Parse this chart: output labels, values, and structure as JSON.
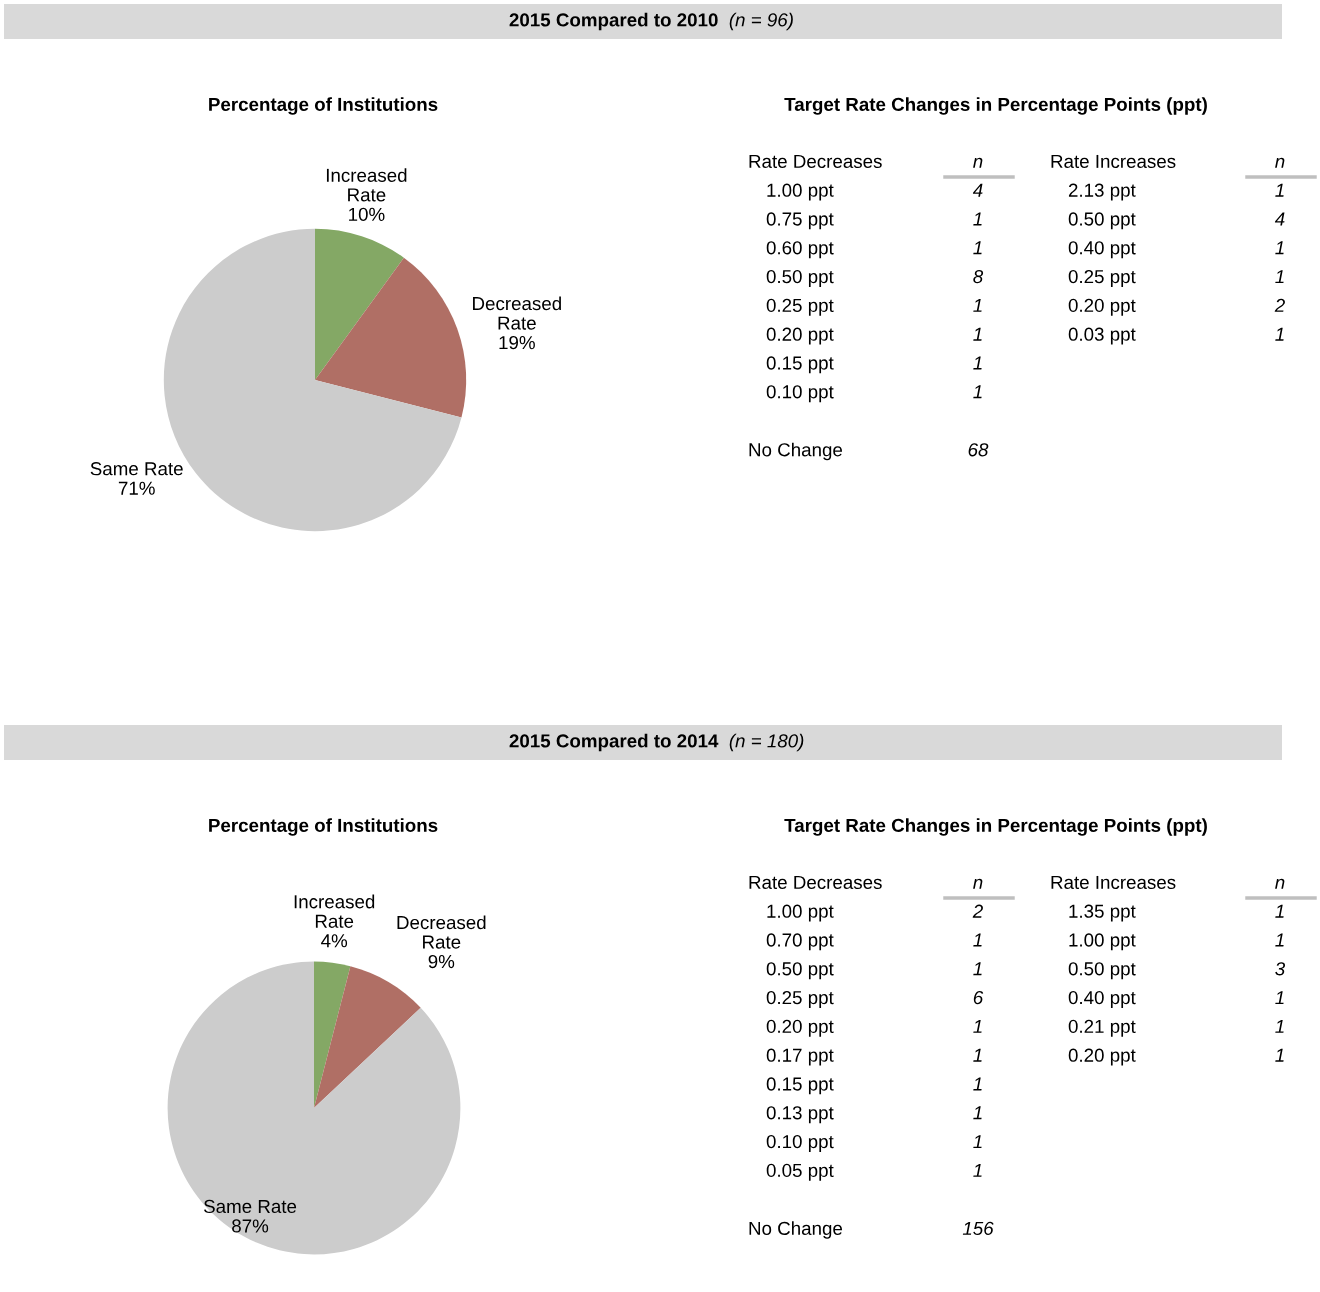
{
  "chart_data": [
    {
      "type": "other",
      "title": "2015 Compared to 2010",
      "subtitle": "(n = 96)"
    },
    {
      "type": "pie",
      "title": "Percentage of Institutions",
      "categories": [
        "Increased\nRate",
        "Decreased\nRate",
        "Same Rate"
      ],
      "values": [
        10,
        19,
        71
      ],
      "value_labels": [
        "10%",
        "19%",
        "71%"
      ],
      "colors": [
        "#84a865",
        "#b06f65",
        "#cccccc"
      ]
    },
    {
      "type": "other",
      "title": "Target Rate Changes in Percentage Points (ppt)",
      "xlabel": "Rate Decreases",
      "ylabel": "n",
      "categories": [
        "1.00 ppt",
        "0.75 ppt",
        "0.60 ppt",
        "0.50 ppt",
        "0.25 ppt",
        "0.20 ppt",
        "0.15 ppt",
        "0.10 ppt"
      ],
      "values": [
        4,
        1,
        1,
        8,
        1,
        1,
        1,
        1
      ],
      "data_labels": true
    },
    {
      "type": "other",
      "xlabel": "Rate Increases",
      "ylabel": "n",
      "categories": [
        "2.13 ppt",
        "0.50 ppt",
        "0.40 ppt",
        "0.25 ppt",
        "0.20 ppt",
        "0.03 ppt"
      ],
      "values": [
        1,
        4,
        1,
        1,
        2,
        1
      ],
      "data_labels": true
    },
    {
      "type": "other",
      "categories": [
        "No Change"
      ],
      "values": [
        68
      ],
      "data_labels": true
    },
    {
      "type": "other",
      "title": "2015 Compared to 2014",
      "subtitle": "(n = 180)"
    },
    {
      "type": "pie",
      "title": "Percentage of Institutions",
      "categories": [
        "Increased\nRate",
        "Decreased\nRate",
        "Same Rate"
      ],
      "values": [
        4,
        9,
        87
      ],
      "value_labels": [
        "4%",
        "9%",
        "87%"
      ],
      "colors": [
        "#84a865",
        "#b06f65",
        "#cccccc"
      ]
    },
    {
      "type": "other",
      "title": "Target Rate Changes in Percentage Points (ppt)",
      "xlabel": "Rate Decreases",
      "ylabel": "n",
      "categories": [
        "1.00 ppt",
        "0.70 ppt",
        "0.50 ppt",
        "0.25 ppt",
        "0.20 ppt",
        "0.17 ppt",
        "0.15 ppt",
        "0.13 ppt",
        "0.10 ppt",
        "0.05 ppt"
      ],
      "values": [
        2,
        1,
        1,
        6,
        1,
        1,
        1,
        1,
        1,
        1
      ],
      "data_labels": true
    },
    {
      "type": "other",
      "xlabel": "Rate Increases",
      "ylabel": "n",
      "categories": [
        "1.35 ppt",
        "1.00 ppt",
        "0.50 ppt",
        "0.40 ppt",
        "0.21 ppt",
        "0.20 ppt"
      ],
      "values": [
        1,
        1,
        3,
        1,
        1,
        1
      ],
      "data_labels": true
    },
    {
      "type": "other",
      "categories": [
        "No Change"
      ],
      "values": [
        156
      ],
      "data_labels": true
    }
  ]
}
